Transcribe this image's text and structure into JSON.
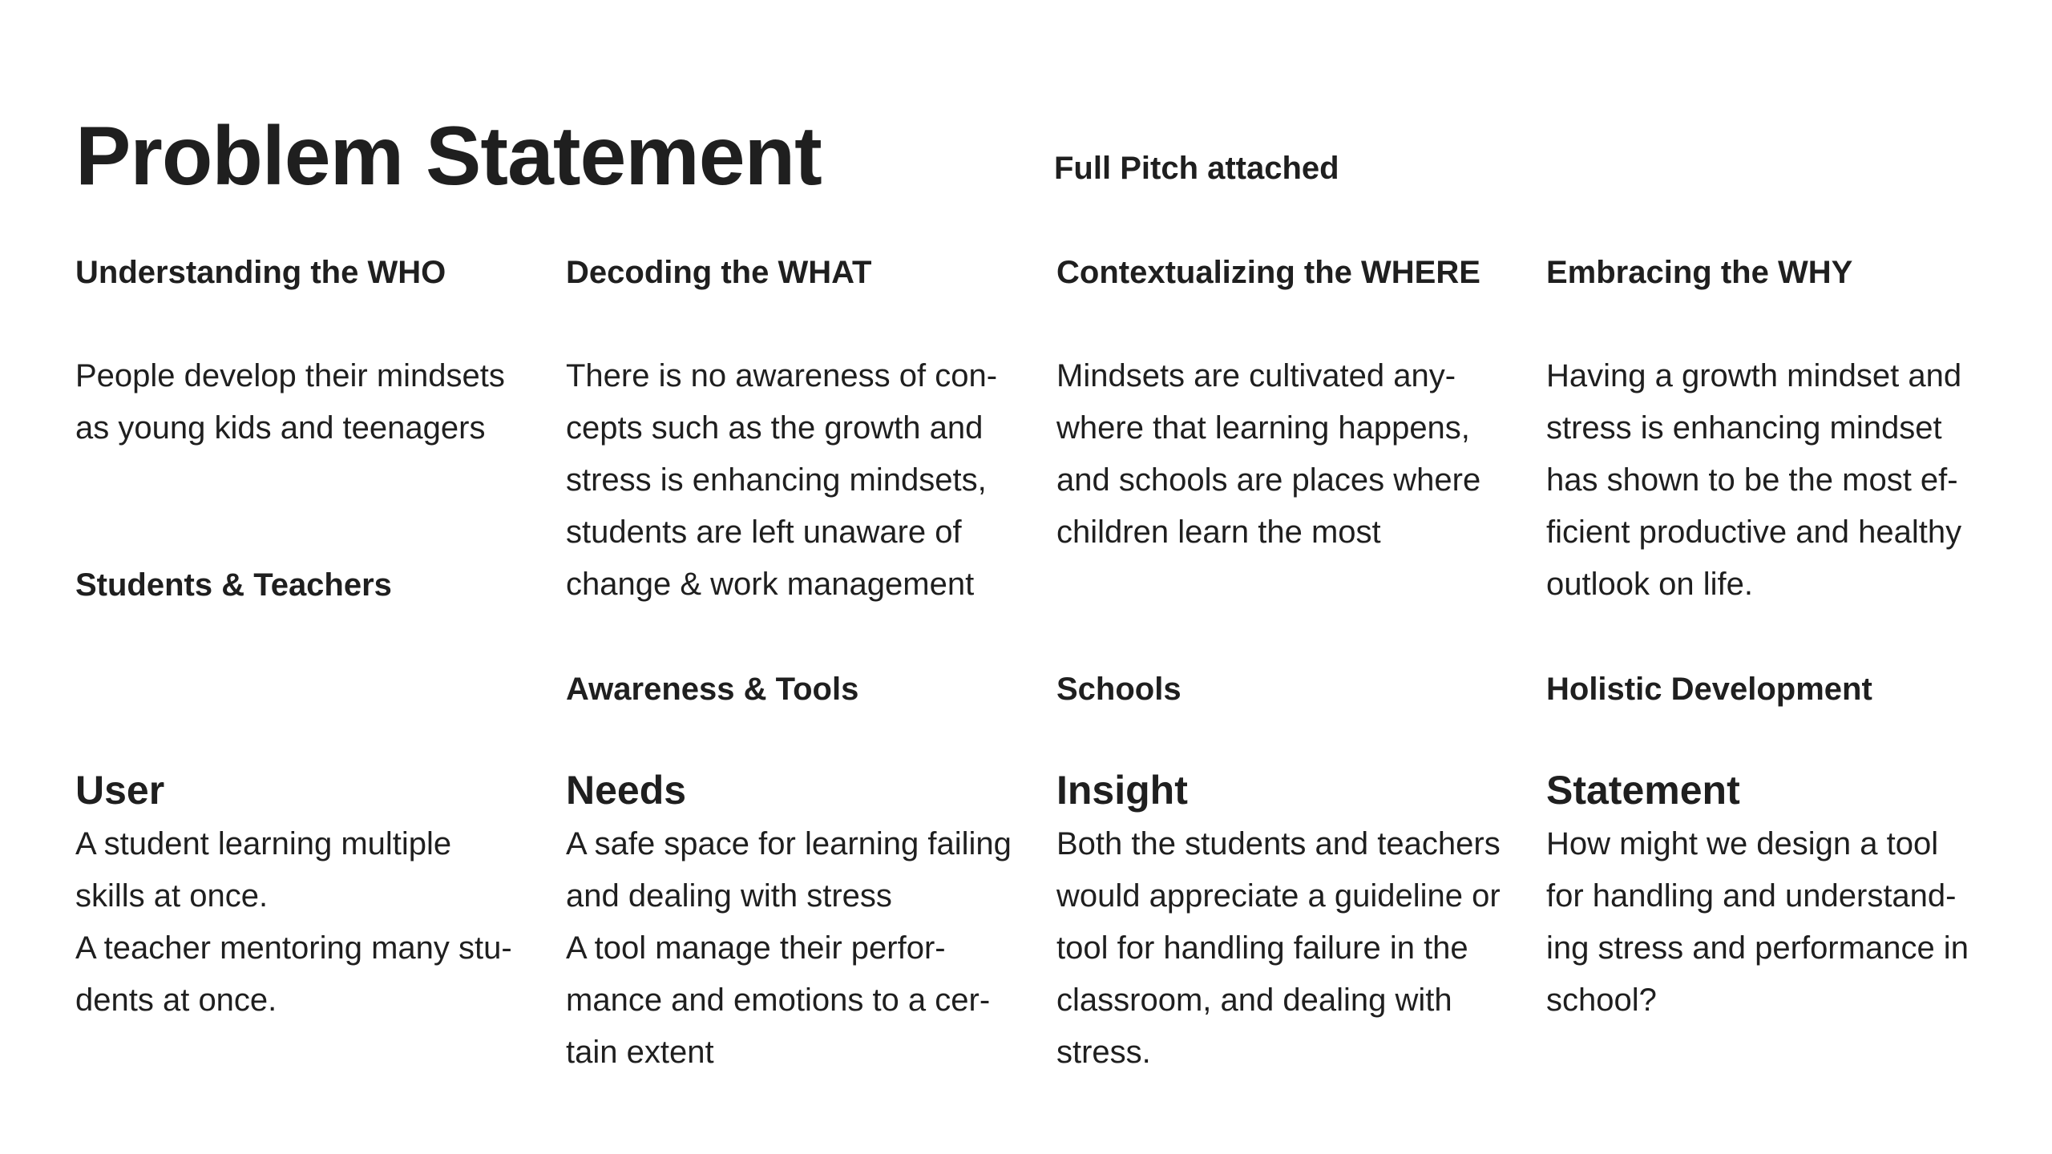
{
  "title": "Problem Statement",
  "subtitle": "Full Pitch attached",
  "columns": [
    {
      "heading": "Understanding the WHO",
      "body": "People develop their mindsets\nas young kids and teenagers",
      "tag": "Students & Teachers"
    },
    {
      "heading": "Decoding the WHAT",
      "body": "There is no awareness of con-\ncepts such as the growth and\nstress is enhancing mindsets,\nstudents are left unaware of\nchange & work management",
      "tag": "Awareness & Tools"
    },
    {
      "heading": "Contextualizing the WHERE",
      "body": "Mindsets are cultivated any-\nwhere that learning happens,\nand schools are places where\nchildren learn the most",
      "tag": "Schools"
    },
    {
      "heading": "Embracing the WHY",
      "body": "Having a growth mindset and\nstress is enhancing mindset\nhas shown to be the most ef-\nficient productive and healthy\noutlook on life.",
      "tag": "Holistic Development"
    }
  ],
  "summary": [
    {
      "label": "User",
      "body": "A student learning multiple\nskills at once.\nA teacher mentoring many stu-\ndents at once."
    },
    {
      "label": "Needs",
      "body": "A safe space for learning failing\nand dealing with stress\nA tool manage their perfor-\nmance and emotions to a cer-\ntain extent"
    },
    {
      "label": "Insight",
      "body": "Both the students and teachers\nwould appreciate a guideline or\ntool for handling failure in the\nclassroom, and dealing with\nstress."
    },
    {
      "label": "Statement",
      "body": "How might we design a tool\nfor handling and understand-\ning stress and performance in\nschool?"
    }
  ]
}
